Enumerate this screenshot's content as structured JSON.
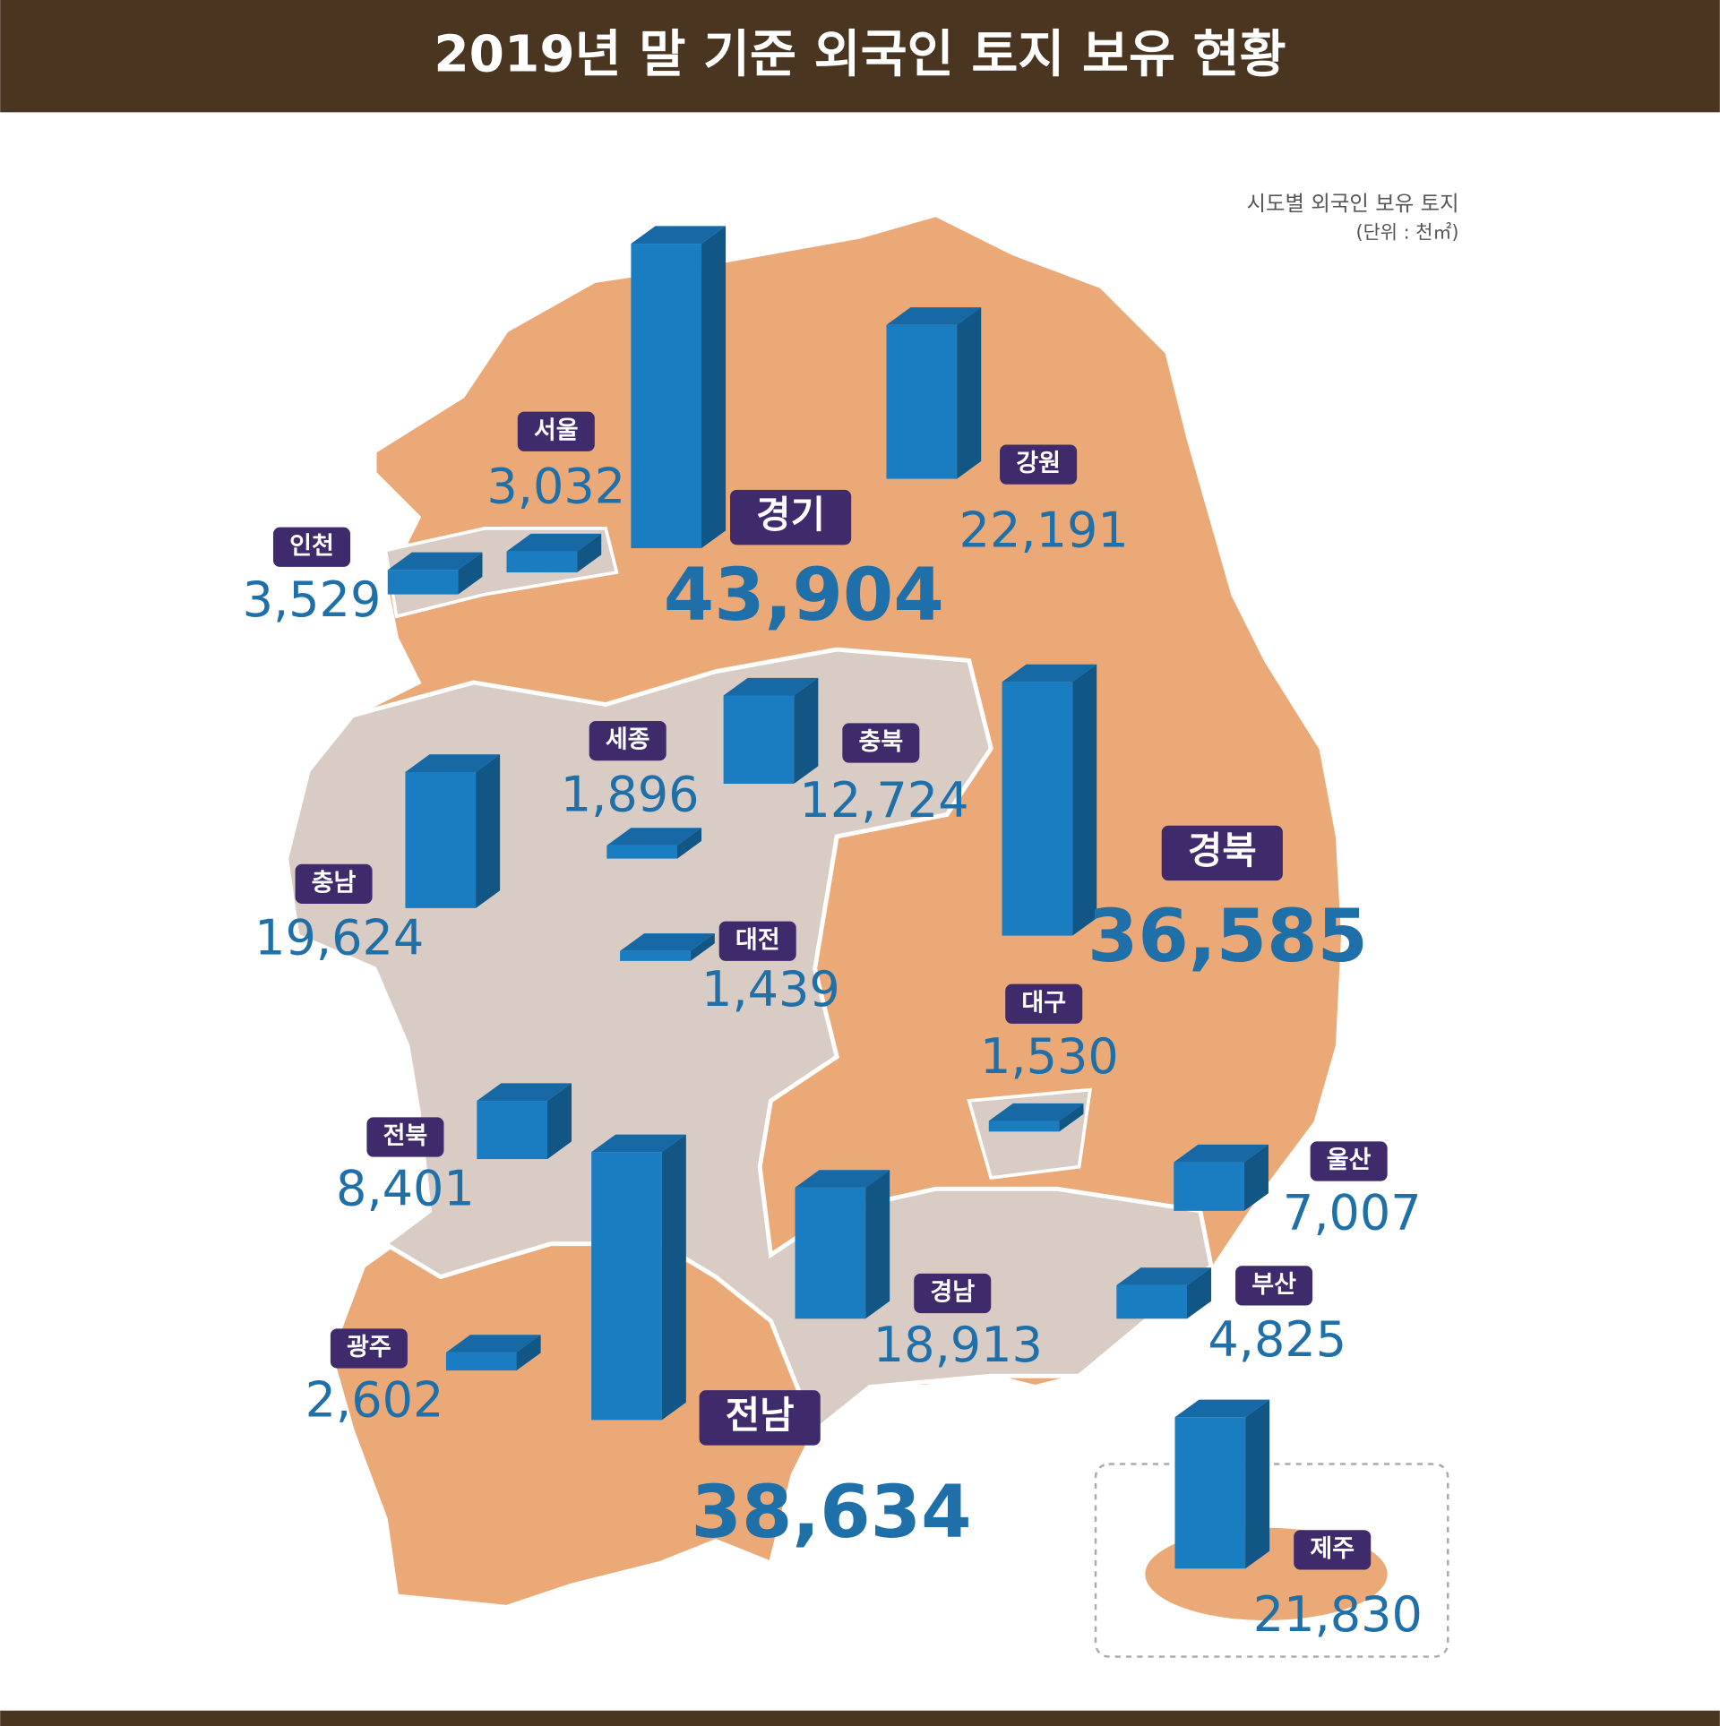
{
  "chart_data": {
    "type": "bar",
    "title": "2019년 말 기준 외국인 토지 보유 현황",
    "subtitle": "시도별 외국인 보유 토지",
    "unit": "(단위 : 천㎡)",
    "categories": [
      "경기",
      "서울",
      "인천",
      "강원",
      "세종",
      "충북",
      "충남",
      "경북",
      "대전",
      "대구",
      "전북",
      "울산",
      "경남",
      "부산",
      "광주",
      "전남",
      "제주"
    ],
    "values": [
      43904,
      3032,
      3529,
      22191,
      1896,
      12724,
      19624,
      36585,
      1439,
      1530,
      8401,
      7007,
      18913,
      4825,
      2602,
      38634,
      21830
    ],
    "value_labels": [
      "43,904",
      "3,032",
      "3,529",
      "22,191",
      "1,896",
      "12,724",
      "19,624",
      "36,585",
      "1,439",
      "1,530",
      "8,401",
      "7,007",
      "18,913",
      "4,825",
      "2,602",
      "38,634",
      "21,830"
    ],
    "color": "#1a7cc1"
  }
}
